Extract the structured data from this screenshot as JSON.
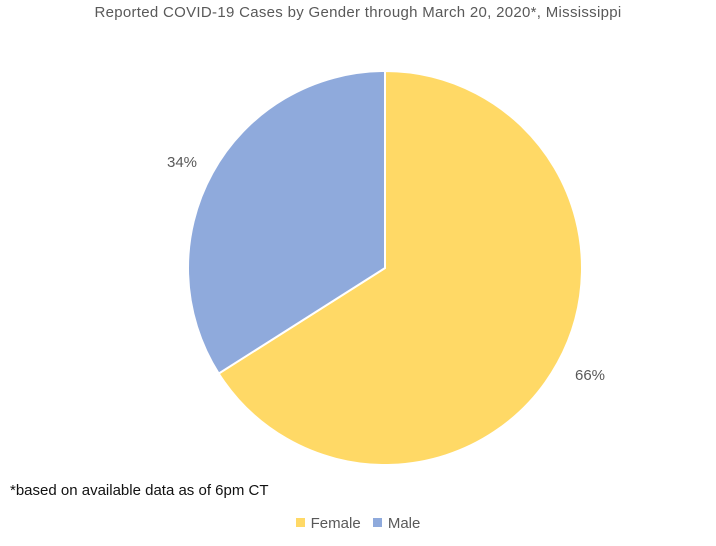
{
  "chart_data": {
    "type": "pie",
    "title": "Reported COVID-19 Cases by Gender through March 20, 2020*, Mississippi",
    "footnote": "*based on available data as of 6pm CT",
    "categories": [
      "Female",
      "Male"
    ],
    "values": [
      66,
      34
    ],
    "labels": [
      "66%",
      "34%"
    ],
    "colors": [
      "#FFD966",
      "#8FAADC"
    ],
    "legend_position": "bottom"
  }
}
